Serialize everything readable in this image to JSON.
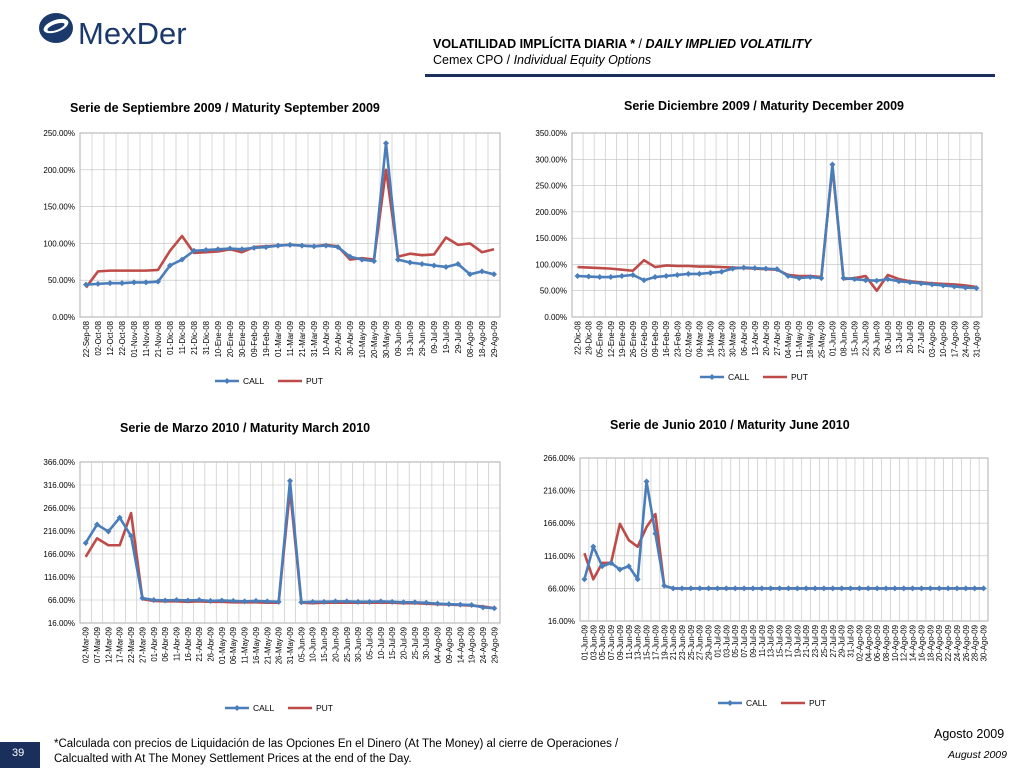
{
  "header": {
    "logo_text": "MexDer",
    "title_es": "VOLATILIDAD IMPLÍCITA DIARIA *",
    "title_sep": " / ",
    "title_en": "DAILY IMPLIED VOLATILITY",
    "subtitle_es": "Cemex CPO",
    "subtitle_sep": " / ",
    "subtitle_en": "Individual Equity Options"
  },
  "footer": {
    "note_line1": "*Calculada con precios de Liquidación de las Opciones En el Dinero (At The Money) al cierre de Operaciones /",
    "note_line2": "Calcualted with At The Money Settlement Prices at the end of the Day.",
    "page_number": "39",
    "date_es": "Agosto 2009",
    "date_en": "August 2009"
  },
  "colors": {
    "call": "#4a7ebb",
    "put": "#be4b48",
    "navy": "#1b2f5c",
    "grid": "#bfbfbf"
  },
  "chart_data": [
    {
      "type": "line",
      "title": "Serie de Septiembre 2009 / Maturity September 2009",
      "yticks": [
        "0.00%",
        "50.00%",
        "100.00%",
        "150.00%",
        "200.00%",
        "250.00%"
      ],
      "ylim": [
        0,
        250
      ],
      "categories": [
        "22-Sep-08",
        "02-Oct-08",
        "12-Oct-08",
        "22-Oct-08",
        "01-Nov-08",
        "11-Nov-08",
        "21-Nov-08",
        "01-Dic-08",
        "11-Dic-08",
        "21-Dic-08",
        "31-Dic-08",
        "10-Ene-09",
        "20-Ene-09",
        "30-Ene-09",
        "09-Feb-09",
        "19-Feb-09",
        "01-Mar-09",
        "11-Mar-09",
        "21-Mar-09",
        "31-Mar-09",
        "10-Abr-09",
        "20-Abr-09",
        "30-Abr-09",
        "10-May-09",
        "20-May-09",
        "30-May-09",
        "09-Jun-09",
        "19-Jun-09",
        "29-Jun-09",
        "09-Jul-09",
        "19-Jul-09",
        "29-Jul-09",
        "08-Ago-09",
        "18-Ago-09",
        "29-Ago-09"
      ],
      "legend": [
        "CALL",
        "PUT"
      ],
      "series": [
        {
          "name": "CALL",
          "values": [
            44,
            45,
            46,
            46,
            47,
            47,
            48,
            70,
            78,
            90,
            91,
            92,
            93,
            92,
            94,
            95,
            97,
            98,
            97,
            96,
            97,
            95,
            82,
            78,
            76,
            236,
            78,
            74,
            72,
            70,
            68,
            72,
            58,
            62,
            58
          ]
        },
        {
          "name": "PUT",
          "values": [
            40,
            62,
            63,
            63,
            63,
            63,
            64,
            90,
            110,
            87,
            88,
            89,
            92,
            88,
            95,
            96,
            97,
            98,
            97,
            96,
            98,
            96,
            78,
            80,
            78,
            200,
            82,
            86,
            84,
            85,
            108,
            98,
            100,
            88,
            92
          ]
        }
      ]
    },
    {
      "type": "line",
      "title": "Serie Diciembre 2009 / Maturity December 2009",
      "yticks": [
        "0.00%",
        "50.00%",
        "100.00%",
        "150.00%",
        "200.00%",
        "250.00%",
        "300.00%",
        "350.00%"
      ],
      "ylim": [
        0,
        350
      ],
      "categories": [
        "22-Dic-08",
        "29-Dic-08",
        "05-Ene-09",
        "12-Ene-09",
        "19-Ene-09",
        "26-Ene-09",
        "02-Feb-09",
        "09-Feb-09",
        "16-Feb-09",
        "23-Feb-09",
        "02-Mar-09",
        "09-Mar-09",
        "16-Mar-09",
        "23-Mar-09",
        "30-Mar-09",
        "06-Abr-09",
        "13-Abr-09",
        "20-Abr-09",
        "27-Abr-09",
        "04-May-09",
        "11-May-09",
        "18-May-09",
        "25-May-09",
        "01-Jun-09",
        "08-Jun-09",
        "15-Jun-09",
        "22-Jun-09",
        "29-Jun-09",
        "06-Jul-09",
        "13-Jul-09",
        "20-Jul-09",
        "27-Jul-09",
        "03-Ago-09",
        "10-Ago-09",
        "17-Ago-09",
        "24-Ago-09",
        "31-Ago-09"
      ],
      "legend": [
        "CALL",
        "PUT"
      ],
      "series": [
        {
          "name": "CALL",
          "values": [
            78,
            77,
            76,
            76,
            78,
            80,
            70,
            76,
            78,
            80,
            82,
            82,
            84,
            86,
            92,
            94,
            93,
            92,
            91,
            78,
            74,
            76,
            74,
            290,
            74,
            72,
            70,
            69,
            72,
            68,
            66,
            64,
            62,
            60,
            58,
            56,
            55
          ]
        },
        {
          "name": "PUT",
          "values": [
            95,
            94,
            93,
            92,
            90,
            88,
            108,
            95,
            98,
            97,
            97,
            96,
            96,
            95,
            94,
            93,
            92,
            91,
            90,
            80,
            78,
            78,
            76,
            285,
            72,
            74,
            78,
            50,
            80,
            72,
            68,
            66,
            64,
            63,
            62,
            60,
            57
          ]
        }
      ]
    },
    {
      "type": "line",
      "title": "Serie de Marzo 2010 / Maturity March 2010",
      "yticks": [
        "16.00%",
        "66.00%",
        "116.00%",
        "166.00%",
        "216.00%",
        "266.00%",
        "316.00%",
        "366.00%"
      ],
      "ylim": [
        16,
        366
      ],
      "categories": [
        "02-Mar-09",
        "07-Mar-09",
        "12-Mar-09",
        "17-Mar-09",
        "22-Mar-09",
        "27-Mar-09",
        "01-Abr-09",
        "06-Abr-09",
        "11-Abr-09",
        "16-Abr-09",
        "21-Abr-09",
        "26-Abr-09",
        "01-May-09",
        "06-May-09",
        "11-May-09",
        "16-May-09",
        "21-May-09",
        "26-May-09",
        "31-May-09",
        "05-Jun-09",
        "10-Jun-09",
        "15-Jun-09",
        "20-Jun-09",
        "25-Jun-09",
        "30-Jun-09",
        "05-Jul-09",
        "10-Jul-09",
        "15-Jul-09",
        "20-Jul-09",
        "25-Jul-09",
        "30-Jul-09",
        "04-Ago-09",
        "09-Ago-09",
        "14-Ago-09",
        "19-Ago-09",
        "24-Ago-09",
        "29-Ago-09"
      ],
      "legend": [
        "CALL",
        "PUT"
      ],
      "series": [
        {
          "name": "CALL",
          "values": [
            190,
            230,
            215,
            245,
            205,
            70,
            66,
            65,
            66,
            65,
            66,
            64,
            65,
            64,
            63,
            64,
            63,
            62,
            325,
            61,
            62,
            62,
            63,
            63,
            62,
            62,
            63,
            62,
            61,
            61,
            60,
            58,
            57,
            56,
            55,
            50,
            48
          ]
        },
        {
          "name": "PUT",
          "values": [
            160,
            200,
            185,
            185,
            255,
            68,
            64,
            63,
            63,
            62,
            63,
            62,
            62,
            61,
            61,
            61,
            60,
            60,
            305,
            60,
            59,
            60,
            60,
            60,
            60,
            60,
            60,
            60,
            59,
            59,
            58,
            57,
            56,
            55,
            54,
            52,
            48
          ]
        }
      ]
    },
    {
      "type": "line",
      "title": "Serie de Junio 2010 / Maturity June 2010",
      "yticks": [
        "16.00%",
        "66.00%",
        "116.00%",
        "166.00%",
        "216.00%",
        "266.00%"
      ],
      "ylim": [
        16,
        266
      ],
      "categories": [
        "01-Jun-09",
        "03-Jun-09",
        "05-Jun-09",
        "07-Jun-09",
        "09-Jun-09",
        "11-Jun-09",
        "13-Jun-09",
        "15-Jun-09",
        "17-Jun-09",
        "19-Jun-09",
        "21-Jun-09",
        "23-Jun-09",
        "25-Jun-09",
        "27-Jun-09",
        "29-Jun-09",
        "01-Jul-09",
        "03-Jul-09",
        "05-Jul-09",
        "07-Jul-09",
        "09-Jul-09",
        "11-Jul-09",
        "13-Jul-09",
        "15-Jul-09",
        "17-Jul-09",
        "19-Jul-09",
        "21-Jul-09",
        "23-Jul-09",
        "25-Jul-09",
        "27-Jul-09",
        "29-Jul-09",
        "31-Jul-09",
        "02-Ago-09",
        "04-Ago-09",
        "06-Ago-09",
        "08-Ago-09",
        "10-Ago-09",
        "12-Ago-09",
        "14-Ago-09",
        "16-Ago-09",
        "18-Ago-09",
        "20-Ago-09",
        "22-Ago-09",
        "24-Ago-09",
        "26-Ago-09",
        "28-Ago-09",
        "30-Ago-09"
      ],
      "legend": [
        "CALL",
        "PUT"
      ],
      "series": [
        {
          "name": "CALL",
          "values": [
            80,
            130,
            100,
            105,
            95,
            100,
            80,
            230,
            150,
            70,
            66,
            66,
            66,
            66,
            66,
            66,
            66,
            66,
            66,
            66,
            66,
            66,
            66,
            66,
            66,
            66,
            66,
            66,
            66,
            66,
            66,
            66,
            66,
            66,
            66,
            66,
            66,
            66,
            66,
            66,
            66,
            66,
            66,
            66,
            66,
            66
          ]
        },
        {
          "name": "PUT",
          "values": [
            120,
            80,
            105,
            105,
            165,
            140,
            130,
            160,
            180,
            70,
            66,
            66,
            66,
            66,
            66,
            66,
            66,
            66,
            66,
            66,
            66,
            66,
            66,
            66,
            66,
            66,
            66,
            66,
            66,
            66,
            66,
            66,
            66,
            66,
            66,
            66,
            66,
            66,
            66,
            66,
            66,
            66,
            66,
            66,
            66,
            66
          ]
        }
      ]
    }
  ]
}
